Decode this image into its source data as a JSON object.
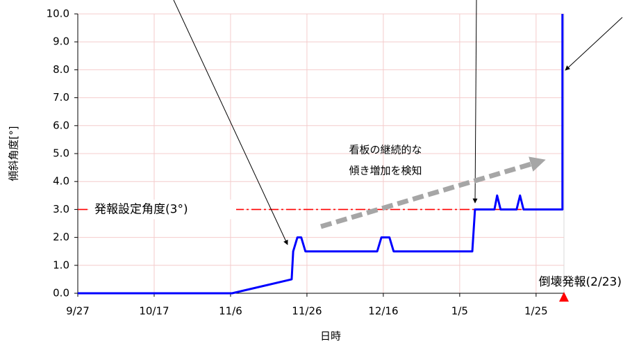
{
  "chart_data": {
    "type": "line",
    "x_label": "日時",
    "y_label": "傾斜角度[°]",
    "xlim": [
      0,
      127.3
    ],
    "xticks": [
      {
        "value": 0,
        "label": "9/27"
      },
      {
        "value": 20,
        "label": "10/17"
      },
      {
        "value": 40,
        "label": "11/6"
      },
      {
        "value": 60,
        "label": "11/26"
      },
      {
        "value": 80,
        "label": "12/16"
      },
      {
        "value": 100,
        "label": "1/5"
      },
      {
        "value": 120,
        "label": "1/25"
      }
    ],
    "ylim": [
      0,
      10
    ],
    "yticks": [
      {
        "value": 0,
        "label": "0.0"
      },
      {
        "value": 1,
        "label": "1.0"
      },
      {
        "value": 2,
        "label": "2.0"
      },
      {
        "value": 3,
        "label": "3.0"
      },
      {
        "value": 4,
        "label": "4.0"
      },
      {
        "value": 5,
        "label": "5.0"
      },
      {
        "value": 6,
        "label": "6.0"
      },
      {
        "value": 7,
        "label": "7.0"
      },
      {
        "value": 8,
        "label": "8.0"
      },
      {
        "value": 9,
        "label": "9.0"
      },
      {
        "value": 10,
        "label": "10.0"
      }
    ],
    "grid": true,
    "series": [
      {
        "color": "#0000ff",
        "x": [
          0,
          40.4,
          56,
          56.4,
          57.5,
          58.5,
          59.6,
          78.4,
          79.5,
          81.6,
          82.7,
          103.3,
          104,
          109.1,
          109.8,
          110.7,
          114.9,
          115.8,
          116.7,
          126.9,
          126.9
        ],
        "values": [
          0,
          0,
          0.5,
          1.5,
          2,
          2,
          1.5,
          1.5,
          2,
          2,
          1.5,
          1.5,
          3,
          3,
          3.5,
          3,
          3,
          3.5,
          3,
          3,
          10
        ]
      }
    ],
    "threshold": {
      "value": 3,
      "label": "発報設定角度(3°)",
      "color": "#ff0000"
    },
    "annotations": [
      "看板の継続的な",
      "傾き増加を検知",
      "倒壊発報(2/23)"
    ]
  }
}
